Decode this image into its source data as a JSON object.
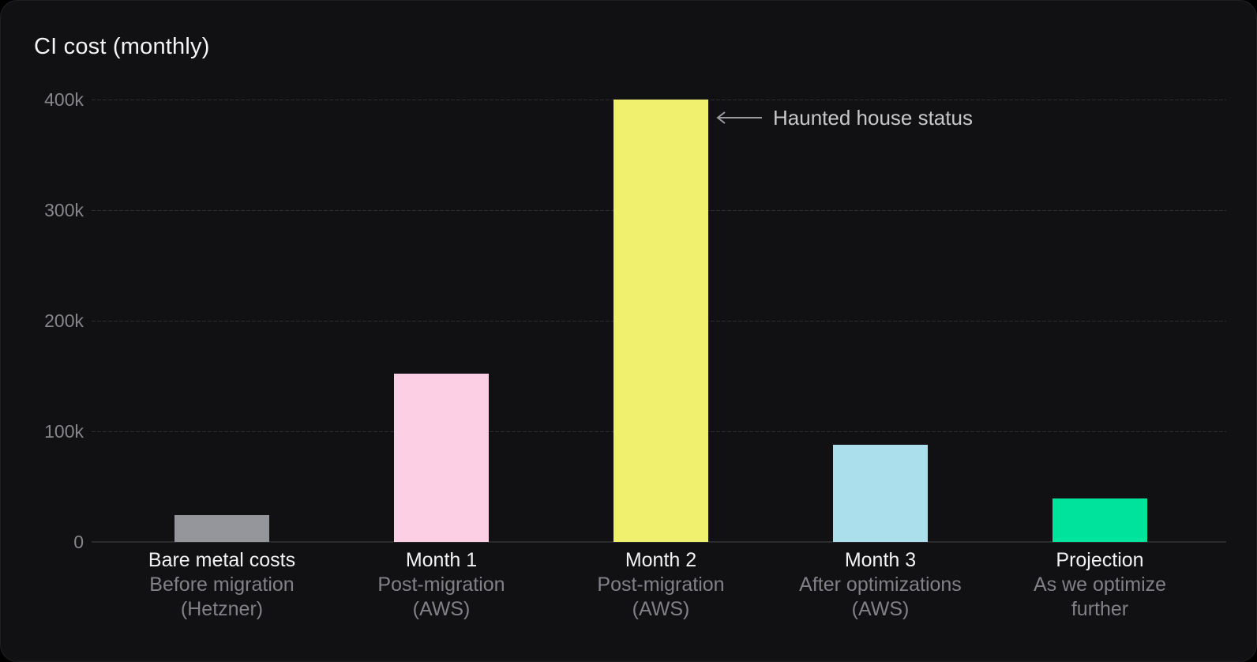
{
  "chart_data": {
    "type": "bar",
    "title": "CI cost (monthly)",
    "categories": [
      "Bare metal costs",
      "Month 1",
      "Month 2",
      "Month 3",
      "Projection"
    ],
    "category_sublabels": [
      [
        "Before migration",
        "(Hetzner)"
      ],
      [
        "Post-migration",
        "(AWS)"
      ],
      [
        "Post-migration",
        "(AWS)"
      ],
      [
        "After optimizations",
        "(AWS)"
      ],
      [
        "As we optimize",
        "further"
      ]
    ],
    "values": [
      24000,
      152000,
      400000,
      88000,
      39000
    ],
    "bar_colors": [
      "#95969c",
      "#fdcfe5",
      "#f0f06e",
      "#abdfec",
      "#00e39c"
    ],
    "yticks": [
      {
        "label": "400k",
        "value": 400000
      },
      {
        "label": "300k",
        "value": 300000
      },
      {
        "label": "200k",
        "value": 200000
      },
      {
        "label": "100k",
        "value": 100000
      },
      {
        "label": "0",
        "value": 0
      }
    ],
    "ylim": [
      0,
      400000
    ],
    "grid": true,
    "legend": "none",
    "annotation": {
      "text": "Haunted house status",
      "arrow_direction": "left",
      "target_category": "Month 2"
    }
  },
  "colors": {
    "background": "#000000",
    "panel": "#111113",
    "title": "#f4f4f5",
    "tick_label": "#86868b",
    "category_label": "#f2f2f3",
    "category_sublabel": "#818187",
    "gridline": "#2e2e30",
    "baseline": "#2b2b2d",
    "annotation_text": "#c8c8cb",
    "annotation_arrow": "#9b9b9f"
  }
}
